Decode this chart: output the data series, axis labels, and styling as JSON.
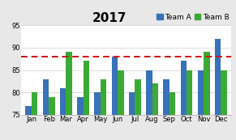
{
  "title": "2017",
  "months": [
    "Jan",
    "Feb",
    "Mar",
    "Apr",
    "May",
    "Jun",
    "Jul",
    "Aug",
    "Sep",
    "Oct",
    "Nov",
    "Dec"
  ],
  "team_a": [
    77,
    83,
    81,
    79,
    80,
    88,
    80,
    85,
    83,
    87,
    85,
    92
  ],
  "team_b": [
    80,
    79,
    89,
    87,
    83,
    85,
    83,
    82,
    80,
    85,
    89,
    85
  ],
  "color_a": "#3872b8",
  "color_b": "#3aaa35",
  "hline_y": 88,
  "hline_color": "#cc1111",
  "ylim": [
    75,
    95
  ],
  "yticks": [
    75,
    80,
    85,
    90,
    95
  ],
  "background_color": "#e8e8e8",
  "plot_bg": "#ffffff",
  "title_fontsize": 11,
  "legend_fontsize": 6.5,
  "tick_fontsize": 6.0,
  "bar_width": 0.35
}
